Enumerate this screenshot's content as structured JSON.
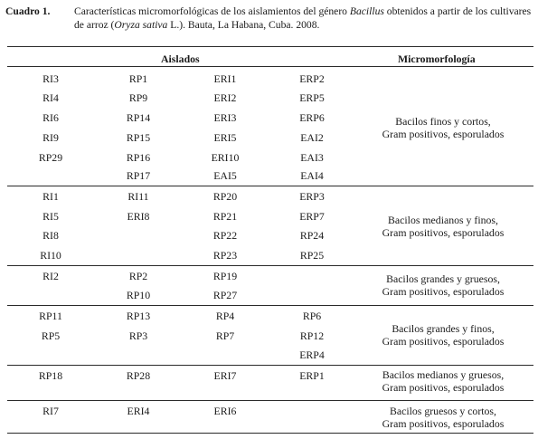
{
  "caption": {
    "label": "Cuadro 1.",
    "text_before_genus": "Características micromorfológicas de los aislamientos del género ",
    "genus": "Bacillus",
    "text_mid": " obtenidos a partir de los cultivares de arroz (",
    "species": "Oryza sativa",
    "text_after": " L.). Bauta, La Habana, Cuba. 2008."
  },
  "table": {
    "headers": {
      "isolates": "Aislados",
      "micromorphology": "Micromorfología"
    },
    "groups": [
      {
        "rows": [
          [
            "RI3",
            "RP1",
            "ERI1",
            "ERP2"
          ],
          [
            "RI4",
            "RP9",
            "ERI2",
            "ERP5"
          ],
          [
            "RI6",
            "RP14",
            "ERI3",
            "ERP6"
          ],
          [
            "RI9",
            "RP15",
            "ERI5",
            "EAI2"
          ],
          [
            "RP29",
            "RP16",
            "ERI10",
            "EAI3"
          ],
          [
            "",
            "RP17",
            "EAI5",
            "EAI4"
          ]
        ],
        "description": [
          "Bacilos finos y cortos,",
          "Gram positivos, esporulados"
        ]
      },
      {
        "rows": [
          [
            "RI1",
            "RI11",
            "RP20",
            "ERP3"
          ],
          [
            "RI5",
            "ERI8",
            "RP21",
            "ERP7"
          ],
          [
            "RI8",
            "",
            "RP22",
            "RP24"
          ],
          [
            "RI10",
            "",
            "RP23",
            "RP25"
          ]
        ],
        "description": [
          "Bacilos medianos y finos,",
          "Gram positivos, esporulados"
        ]
      },
      {
        "rows": [
          [
            "RI2",
            "RP2",
            "RP19",
            ""
          ],
          [
            "",
            "RP10",
            "RP27",
            ""
          ]
        ],
        "description": [
          "Bacilos grandes y gruesos,",
          "Gram positivos, esporulados"
        ]
      },
      {
        "rows": [
          [
            "RP11",
            "RP13",
            "RP4",
            "RP6"
          ],
          [
            "RP5",
            "RP3",
            "RP7",
            "RP12"
          ],
          [
            "",
            "",
            "",
            "ERP4"
          ]
        ],
        "description": [
          "Bacilos grandes y finos,",
          "Gram positivos, esporulados"
        ]
      },
      {
        "rows": [
          [
            "RP18",
            "RP28",
            "ERI7",
            "ERP1"
          ]
        ],
        "description": [
          "Bacilos medianos y gruesos,",
          "Gram positivos, esporulados"
        ]
      },
      {
        "rows": [
          [
            "RI7",
            "ERI4",
            "ERI6",
            ""
          ]
        ],
        "description": [
          "Bacilos gruesos y cortos,",
          "Gram positivos, esporulados"
        ]
      }
    ]
  }
}
